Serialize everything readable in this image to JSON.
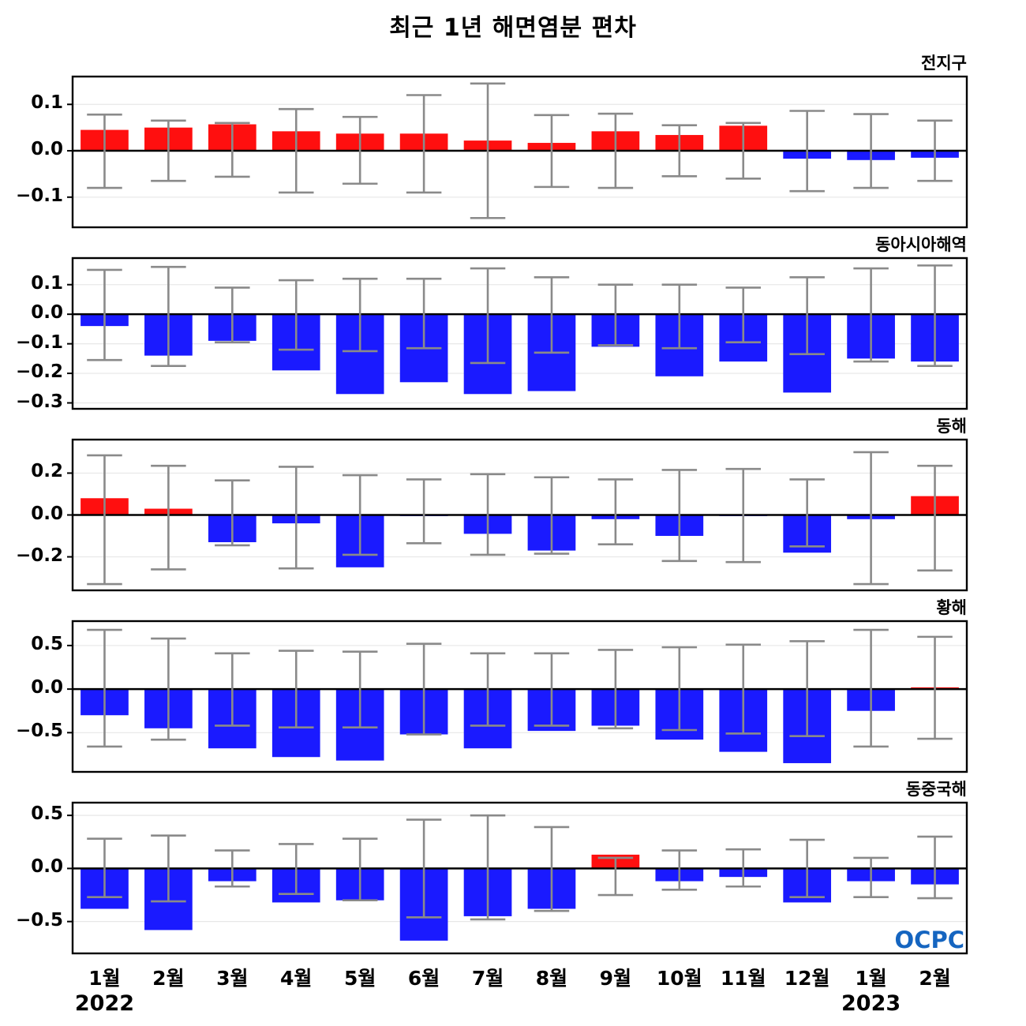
{
  "title": "최근 1년 해면염분 편차",
  "logo": "OCPC",
  "colors": {
    "positive": "#ff0f0f",
    "negative": "#1a1aff",
    "error": "#8a8a8a",
    "grid": "#e7e7e7",
    "axis": "#000000",
    "logo_blue": "#1565c0"
  },
  "x": {
    "categories": [
      "1월",
      "2월",
      "3월",
      "4월",
      "5월",
      "6월",
      "7월",
      "8월",
      "9월",
      "10월",
      "11월",
      "12월",
      "1월",
      "2월"
    ],
    "year_labels": [
      {
        "text": "2022",
        "index": 0
      },
      {
        "text": "2023",
        "index": 12
      }
    ]
  },
  "chart_data": [
    {
      "type": "bar",
      "title": "전지구",
      "ylim": [
        -0.165,
        0.16
      ],
      "yticks": [
        0.1,
        0.0,
        -0.1
      ],
      "ytick_labels": [
        "0.1",
        "0.0",
        "−0.1"
      ],
      "values": [
        0.045,
        0.05,
        0.057,
        0.042,
        0.037,
        0.037,
        0.022,
        0.017,
        0.042,
        0.034,
        0.054,
        -0.017,
        -0.02,
        -0.015
      ],
      "err_high": [
        0.078,
        0.065,
        0.06,
        0.09,
        0.073,
        0.12,
        0.145,
        0.077,
        0.08,
        0.055,
        0.06,
        0.086,
        0.079,
        0.065
      ],
      "err_low": [
        -0.08,
        -0.065,
        -0.056,
        -0.09,
        -0.071,
        -0.09,
        -0.145,
        -0.078,
        -0.08,
        -0.055,
        -0.06,
        -0.087,
        -0.08,
        -0.065
      ]
    },
    {
      "type": "bar",
      "title": "동아시아해역",
      "ylim": [
        -0.32,
        0.19
      ],
      "yticks": [
        0.1,
        0.0,
        -0.1,
        -0.2,
        -0.3
      ],
      "ytick_labels": [
        "0.1",
        "0.0",
        "−0.1",
        "−0.2",
        "−0.3"
      ],
      "values": [
        -0.04,
        -0.14,
        -0.09,
        -0.19,
        -0.27,
        -0.23,
        -0.27,
        -0.26,
        -0.11,
        -0.21,
        -0.16,
        -0.265,
        -0.15,
        -0.16
      ],
      "err_high": [
        0.15,
        0.16,
        0.09,
        0.115,
        0.12,
        0.12,
        0.155,
        0.125,
        0.1,
        0.1,
        0.09,
        0.125,
        0.155,
        0.165
      ],
      "err_low": [
        -0.155,
        -0.175,
        -0.095,
        -0.12,
        -0.125,
        -0.115,
        -0.165,
        -0.13,
        -0.105,
        -0.115,
        -0.095,
        -0.135,
        -0.16,
        -0.175
      ]
    },
    {
      "type": "bar",
      "title": "동해",
      "ylim": [
        -0.36,
        0.36
      ],
      "yticks": [
        0.2,
        0.0,
        -0.2
      ],
      "ytick_labels": [
        "0.2",
        "0.0",
        "−0.2"
      ],
      "values": [
        0.08,
        0.03,
        -0.13,
        -0.04,
        -0.25,
        -0.005,
        -0.09,
        -0.17,
        -0.02,
        -0.1,
        -0.005,
        -0.18,
        -0.02,
        0.09
      ],
      "err_high": [
        0.285,
        0.235,
        0.165,
        0.23,
        0.19,
        0.17,
        0.195,
        0.18,
        0.17,
        0.215,
        0.22,
        0.17,
        0.3,
        0.235
      ],
      "err_low": [
        -0.33,
        -0.26,
        -0.145,
        -0.255,
        -0.19,
        -0.135,
        -0.19,
        -0.185,
        -0.14,
        -0.22,
        -0.225,
        -0.15,
        -0.33,
        -0.265
      ]
    },
    {
      "type": "bar",
      "title": "황해",
      "ylim": [
        -0.95,
        0.78
      ],
      "yticks": [
        0.5,
        0.0,
        -0.5
      ],
      "ytick_labels": [
        "0.5",
        "0.0",
        "−0.5"
      ],
      "values": [
        -0.3,
        -0.45,
        -0.68,
        -0.78,
        -0.82,
        -0.52,
        -0.68,
        -0.48,
        -0.42,
        -0.58,
        -0.72,
        -0.85,
        -0.25,
        0.02
      ],
      "err_high": [
        0.68,
        0.58,
        0.41,
        0.44,
        0.43,
        0.52,
        0.41,
        0.41,
        0.45,
        0.48,
        0.51,
        0.55,
        0.68,
        0.6
      ],
      "err_low": [
        -0.66,
        -0.58,
        -0.42,
        -0.44,
        -0.44,
        -0.52,
        -0.42,
        -0.42,
        -0.45,
        -0.47,
        -0.51,
        -0.54,
        -0.66,
        -0.57
      ]
    },
    {
      "type": "bar",
      "title": "동중국해",
      "ylim": [
        -0.8,
        0.62
      ],
      "yticks": [
        0.5,
        0.0,
        -0.5
      ],
      "ytick_labels": [
        "0.5",
        "0.0",
        "−0.5"
      ],
      "values": [
        -0.38,
        -0.58,
        -0.12,
        -0.32,
        -0.3,
        -0.68,
        -0.45,
        -0.38,
        0.13,
        -0.12,
        -0.08,
        -0.32,
        -0.12,
        -0.15
      ],
      "err_high": [
        0.28,
        0.31,
        0.17,
        0.23,
        0.28,
        0.46,
        0.5,
        0.39,
        0.1,
        0.17,
        0.18,
        0.27,
        0.1,
        0.3
      ],
      "err_low": [
        -0.27,
        -0.31,
        -0.17,
        -0.24,
        -0.3,
        -0.46,
        -0.48,
        -0.4,
        -0.25,
        -0.2,
        -0.17,
        -0.27,
        -0.27,
        -0.28
      ]
    }
  ]
}
